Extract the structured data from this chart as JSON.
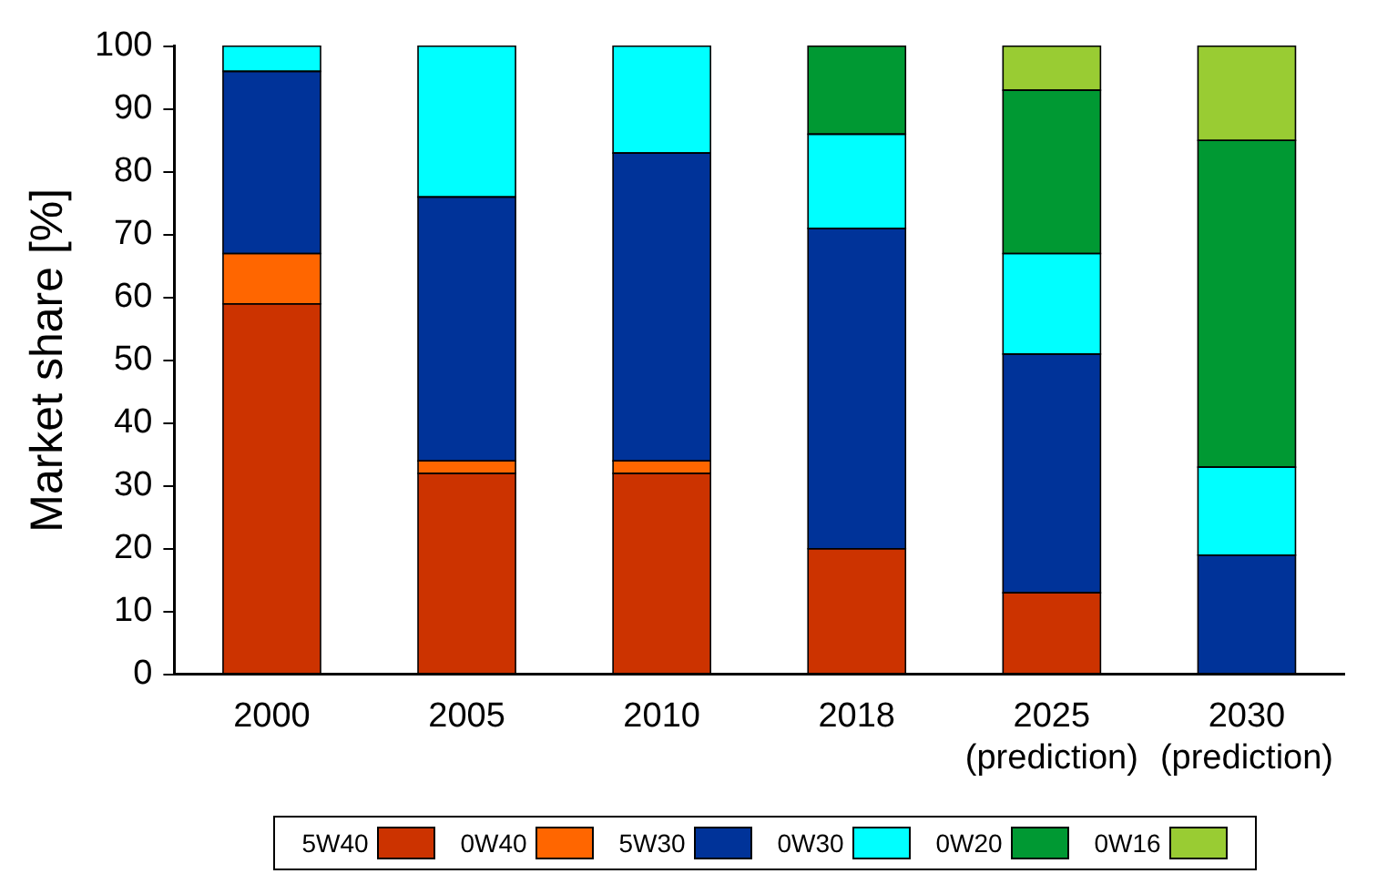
{
  "chart_data": {
    "type": "bar",
    "stacked": true,
    "ylabel": "Market share [%]",
    "categories": [
      "2000",
      "2005",
      "2010",
      "2018",
      "2025\n(prediction)",
      "2030\n(prediction)"
    ],
    "series": [
      {
        "name": "5W40",
        "color": "#cc3300",
        "values": [
          59,
          32,
          32,
          20,
          13,
          0
        ]
      },
      {
        "name": "0W40",
        "color": "#ff6600",
        "values": [
          8,
          2,
          2,
          0,
          0,
          0
        ]
      },
      {
        "name": "5W30",
        "color": "#003399",
        "values": [
          29,
          42,
          49,
          51,
          38,
          19
        ]
      },
      {
        "name": "0W30",
        "color": "#00ffff",
        "values": [
          4,
          24,
          17,
          15,
          16,
          14
        ]
      },
      {
        "name": "0W20",
        "color": "#009933",
        "values": [
          0,
          0,
          0,
          14,
          26,
          52
        ]
      },
      {
        "name": "0W16",
        "color": "#99cc33",
        "values": [
          0,
          0,
          0,
          0,
          7,
          15
        ]
      }
    ],
    "ylim": [
      0,
      100
    ],
    "yticks": [
      0,
      10,
      20,
      30,
      40,
      50,
      60,
      70,
      80,
      90,
      100
    ],
    "grid": false,
    "legend": "bottom"
  }
}
